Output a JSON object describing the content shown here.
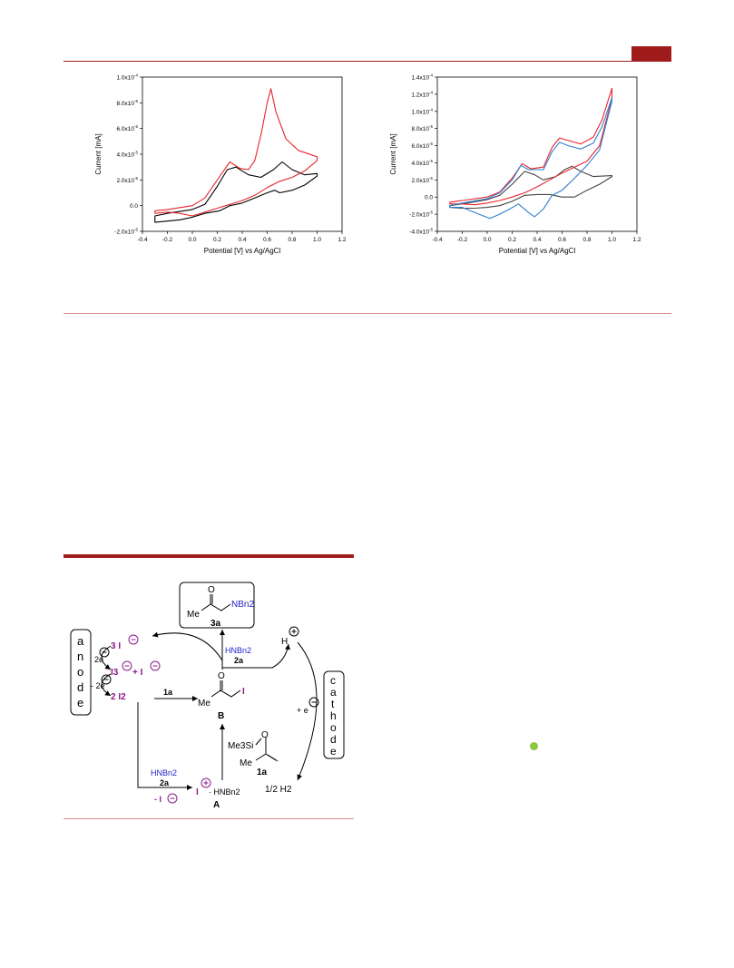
{
  "colors": {
    "accent": "#a01c1c",
    "red_trace": "#e8262a",
    "black_trace": "#000000",
    "blue_trace": "#2f7fcf",
    "gray_trace": "#444444",
    "purple": "#8b1a8b",
    "blue_text": "#2424c8",
    "green_dot": "#8dc63f"
  },
  "chart_data": [
    {
      "type": "line",
      "title": "",
      "xlabel": "Potential [V] vs Ag/AgCl",
      "ylabel": "Current [mA]",
      "xlim": [
        -0.4,
        1.2
      ],
      "ylim": [
        -2e-05,
        0.0001
      ],
      "xticks": [
        "-0.4",
        "-0.2",
        "0.0",
        "0.2",
        "0.4",
        "0.6",
        "0.8",
        "1.0",
        "1.2"
      ],
      "yticks": [
        "-2.0x10-5",
        "0.0",
        "2.0x10-5",
        "4.0x10-5",
        "6.0x10-5",
        "8.0x10-5",
        "1.0x10-4"
      ],
      "series": [
        {
          "color": "#000000",
          "x": [
            -0.3,
            -0.2,
            0.0,
            0.1,
            0.2,
            0.28,
            0.35,
            0.45,
            0.55,
            0.65,
            0.72,
            0.8,
            0.9,
            1.0,
            1.0,
            0.9,
            0.8,
            0.7,
            0.66,
            0.6,
            0.5,
            0.4,
            0.35,
            0.3,
            0.22,
            0.1,
            0.0,
            -0.1,
            -0.2,
            -0.3
          ],
          "y": [
            -8e-06,
            -6e-06,
            -3e-06,
            1e-06,
            1.5e-05,
            2.8e-05,
            3e-05,
            2.4e-05,
            2.2e-05,
            2.8e-05,
            3.4e-05,
            2.8e-05,
            2.4e-05,
            2.5e-05,
            2.3e-05,
            1.6e-05,
            1.2e-05,
            1e-05,
            1.2e-05,
            1e-05,
            6e-06,
            2e-06,
            1e-06,
            0.0,
            -4e-06,
            -6e-06,
            -9e-06,
            -1.1e-05,
            -1.2e-05,
            -1.3e-05
          ]
        },
        {
          "color": "#e8262a",
          "x": [
            -0.3,
            -0.2,
            0.0,
            0.1,
            0.2,
            0.3,
            0.38,
            0.45,
            0.5,
            0.55,
            0.6,
            0.63,
            0.67,
            0.75,
            0.85,
            1.0,
            1.0,
            0.9,
            0.8,
            0.7,
            0.6,
            0.5,
            0.4,
            0.3,
            0.2,
            0.1,
            0.0,
            -0.1,
            -0.2,
            -0.3
          ],
          "y": [
            -4e-06,
            -3e-06,
            0.0,
            6e-06,
            2e-05,
            3.4e-05,
            2.9e-05,
            2.8e-05,
            3.5e-05,
            5.5e-05,
            8e-05,
            9.1e-05,
            7.3e-05,
            5.2e-05,
            4.3e-05,
            3.8e-05,
            3.5e-05,
            2.7e-05,
            2.2e-05,
            1.9e-05,
            1.4e-05,
            8e-06,
            4e-06,
            1e-06,
            -2e-06,
            -5e-06,
            -8e-06,
            -6e-06,
            -5e-06,
            -6e-06
          ]
        }
      ]
    },
    {
      "type": "line",
      "title": "",
      "xlabel": "Potential [V] vs Ag/AgCl",
      "ylabel": "Current [mA]",
      "xlim": [
        -0.4,
        1.2
      ],
      "ylim": [
        -4e-05,
        0.00014
      ],
      "xticks": [
        "-0.4",
        "-0.2",
        "0.0",
        "0.2",
        "0.4",
        "0.6",
        "0.8",
        "1.0",
        "1.2"
      ],
      "yticks": [
        "-4.0x10-5",
        "-2.0x10-5",
        "0.0",
        "2.0x10-5",
        "4.0x10-5",
        "6.0x10-5",
        "8.0x10-5",
        "1.0x10-4",
        "1.2x10-4",
        "1.4x10-4"
      ],
      "series": [
        {
          "color": "#444444",
          "x": [
            -0.3,
            -0.2,
            0.0,
            0.1,
            0.2,
            0.3,
            0.38,
            0.45,
            0.55,
            0.62,
            0.68,
            0.75,
            0.85,
            1.0,
            1.0,
            0.9,
            0.8,
            0.7,
            0.6,
            0.5,
            0.4,
            0.3,
            0.2,
            0.1,
            0.0,
            -0.1,
            -0.2,
            -0.3
          ],
          "y": [
            -1e-05,
            -8e-06,
            -3e-06,
            2e-06,
            1.5e-05,
            3e-05,
            2.6e-05,
            2e-05,
            2.4e-05,
            3.2e-05,
            3.6e-05,
            3e-05,
            2.4e-05,
            2.5e-05,
            2.4e-05,
            1.5e-05,
            8e-06,
            0.0,
            0.0,
            3e-06,
            3e-06,
            2e-06,
            -5e-06,
            -1e-05,
            -1.2e-05,
            -1.3e-05,
            -1.3e-05,
            -1.2e-05
          ]
        },
        {
          "color": "#e8262a",
          "x": [
            -0.3,
            -0.2,
            0.0,
            0.1,
            0.2,
            0.28,
            0.35,
            0.45,
            0.52,
            0.58,
            0.65,
            0.75,
            0.85,
            0.92,
            1.0,
            1.0,
            0.9,
            0.8,
            0.7,
            0.6,
            0.5,
            0.4,
            0.3,
            0.2,
            0.1,
            0.0,
            -0.1,
            -0.2,
            -0.3
          ],
          "y": [
            -6e-06,
            -4e-06,
            0.0,
            6e-06,
            2.2e-05,
            3.9e-05,
            3.3e-05,
            3.5e-05,
            5.8e-05,
            6.9e-05,
            6.6e-05,
            6.2e-05,
            7e-05,
            9e-05,
            0.000127,
            0.000115,
            6e-05,
            4.2e-05,
            3.5e-05,
            2.8e-05,
            2e-05,
            1.2e-05,
            5e-06,
            0.0,
            -4e-06,
            -7e-06,
            -9e-06,
            -8e-06,
            -8e-06
          ]
        },
        {
          "color": "#2f7fcf",
          "x": [
            -0.3,
            -0.2,
            0.0,
            0.1,
            0.2,
            0.27,
            0.33,
            0.45,
            0.52,
            0.58,
            0.65,
            0.75,
            0.85,
            0.92,
            1.0,
            1.0,
            0.9,
            0.8,
            0.7,
            0.6,
            0.52,
            0.45,
            0.38,
            0.33,
            0.25,
            0.18,
            0.1,
            0.02,
            -0.1,
            -0.2,
            -0.3
          ],
          "y": [
            -1e-05,
            -7e-06,
            -2e-06,
            5e-06,
            2e-05,
            3.7e-05,
            3.2e-05,
            3.2e-05,
            5.3e-05,
            6.4e-05,
            6e-05,
            5.6e-05,
            6.3e-05,
            8.2e-05,
            0.000116,
            0.000112,
            5.5e-05,
            3.7e-05,
            2.2e-05,
            8e-06,
            2e-06,
            -1.4e-05,
            -2.3e-05,
            -1.8e-05,
            -8e-06,
            -1.4e-05,
            -2e-05,
            -2.5e-05,
            -1.8e-05,
            -1.2e-05,
            -1.2e-05
          ]
        }
      ]
    }
  ],
  "scheme": {
    "product": "3a",
    "product_amine": "NBn2",
    "me": "Me",
    "o": "O",
    "anode_letters": [
      "a",
      "n",
      "o",
      "d",
      "e"
    ],
    "cathode_letters": [
      "c",
      "a",
      "t",
      "h",
      "o",
      "d",
      "e"
    ],
    "three_iodide": "3 I",
    "triiodide": "I3",
    "plus_i": "+ I",
    "two_i2": "2 I2",
    "two_e": "2e",
    "minus_two_e": "- 2e",
    "hnbn2": "HNBn2",
    "label_2a": "2a",
    "label_1a": "1a",
    "label_B": "B",
    "label_A": "A",
    "iodo": "I",
    "proton": "H",
    "plus_e": "+ e",
    "half_h2": "1/2 H2",
    "me3si": "Me3Si",
    "minus_i": "- I",
    "int_A_amine": "· HNBn2"
  }
}
